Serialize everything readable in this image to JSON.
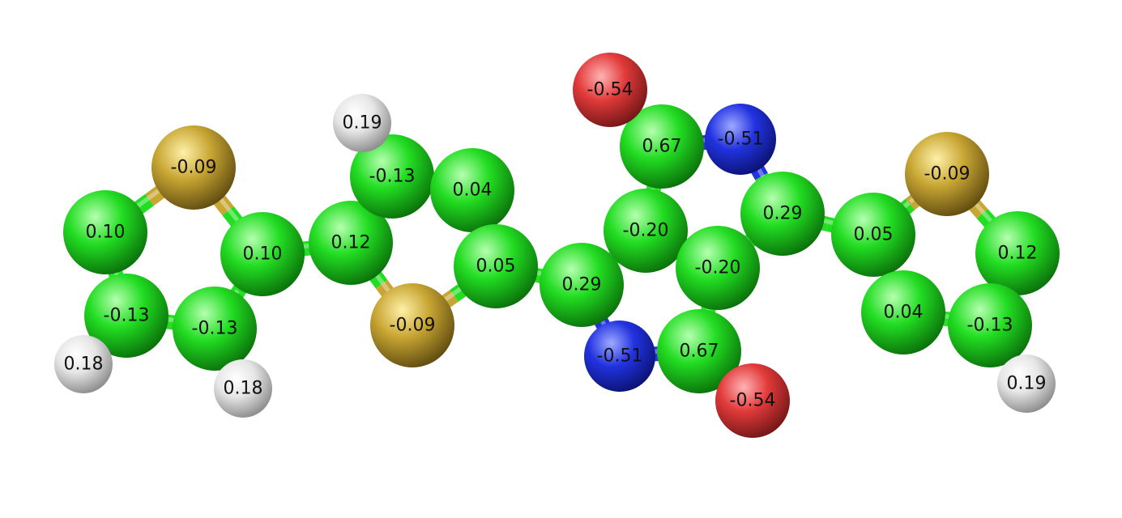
{
  "colors": {
    "C": "#22dd22",
    "S": "#c8a633",
    "N": "#2233e0",
    "O": "#e23a3a",
    "H": "#e8e8e8"
  },
  "atoms": [
    {
      "id": "a1",
      "element": "S",
      "charge": "-0.09"
    },
    {
      "id": "a2",
      "element": "C",
      "charge": "0.10"
    },
    {
      "id": "a3",
      "element": "C",
      "charge": "0.10"
    },
    {
      "id": "a4",
      "element": "C",
      "charge": "-0.13"
    },
    {
      "id": "a5",
      "element": "C",
      "charge": "-0.13"
    },
    {
      "id": "a6",
      "element": "H",
      "charge": "0.18"
    },
    {
      "id": "a7",
      "element": "H",
      "charge": "0.18"
    },
    {
      "id": "a8",
      "element": "C",
      "charge": "0.12"
    },
    {
      "id": "a9",
      "element": "S",
      "charge": "-0.09"
    },
    {
      "id": "a10",
      "element": "C",
      "charge": "-0.13"
    },
    {
      "id": "a11",
      "element": "H",
      "charge": "0.19"
    },
    {
      "id": "a12",
      "element": "C",
      "charge": "0.04"
    },
    {
      "id": "a13",
      "element": "C",
      "charge": "0.05"
    },
    {
      "id": "a14",
      "element": "C",
      "charge": "0.29"
    },
    {
      "id": "a15",
      "element": "N",
      "charge": "-0.51"
    },
    {
      "id": "a16",
      "element": "C",
      "charge": "0.67"
    },
    {
      "id": "a17",
      "element": "O",
      "charge": "-0.54"
    },
    {
      "id": "a18",
      "element": "C",
      "charge": "-0.20"
    },
    {
      "id": "a19",
      "element": "C",
      "charge": "-0.20"
    },
    {
      "id": "a20",
      "element": "C",
      "charge": "0.67"
    },
    {
      "id": "a21",
      "element": "O",
      "charge": "-0.54"
    },
    {
      "id": "a22",
      "element": "N",
      "charge": "-0.51"
    },
    {
      "id": "a23",
      "element": "C",
      "charge": "0.29"
    },
    {
      "id": "a24",
      "element": "C",
      "charge": "0.05"
    },
    {
      "id": "a25",
      "element": "S",
      "charge": "-0.09"
    },
    {
      "id": "a26",
      "element": "C",
      "charge": "0.12"
    },
    {
      "id": "a27",
      "element": "C",
      "charge": "-0.13"
    },
    {
      "id": "a28",
      "element": "H",
      "charge": "0.19"
    },
    {
      "id": "a29",
      "element": "C",
      "charge": "0.04"
    }
  ],
  "bonds": [
    [
      "a1",
      "a2"
    ],
    [
      "a1",
      "a3"
    ],
    [
      "a2",
      "a4"
    ],
    [
      "a4",
      "a5"
    ],
    [
      "a5",
      "a3"
    ],
    [
      "a4",
      "a6"
    ],
    [
      "a5",
      "a7"
    ],
    [
      "a3",
      "a8"
    ],
    [
      "a8",
      "a9"
    ],
    [
      "a8",
      "a10"
    ],
    [
      "a10",
      "a11"
    ],
    [
      "a10",
      "a12"
    ],
    [
      "a12",
      "a13"
    ],
    [
      "a13",
      "a9"
    ],
    [
      "a13",
      "a14"
    ],
    [
      "a14",
      "a15"
    ],
    [
      "a14",
      "a18"
    ],
    [
      "a15",
      "a20"
    ],
    [
      "a20",
      "a21"
    ],
    [
      "a20",
      "a19"
    ],
    [
      "a18",
      "a19"
    ],
    [
      "a18",
      "a16"
    ],
    [
      "a16",
      "a17"
    ],
    [
      "a16",
      "a22"
    ],
    [
      "a22",
      "a23"
    ],
    [
      "a23",
      "a19"
    ],
    [
      "a23",
      "a24"
    ],
    [
      "a24",
      "a25"
    ],
    [
      "a25",
      "a26"
    ],
    [
      "a26",
      "a27"
    ],
    [
      "a27",
      "a29"
    ],
    [
      "a29",
      "a24"
    ],
    [
      "a27",
      "a28"
    ]
  ]
}
